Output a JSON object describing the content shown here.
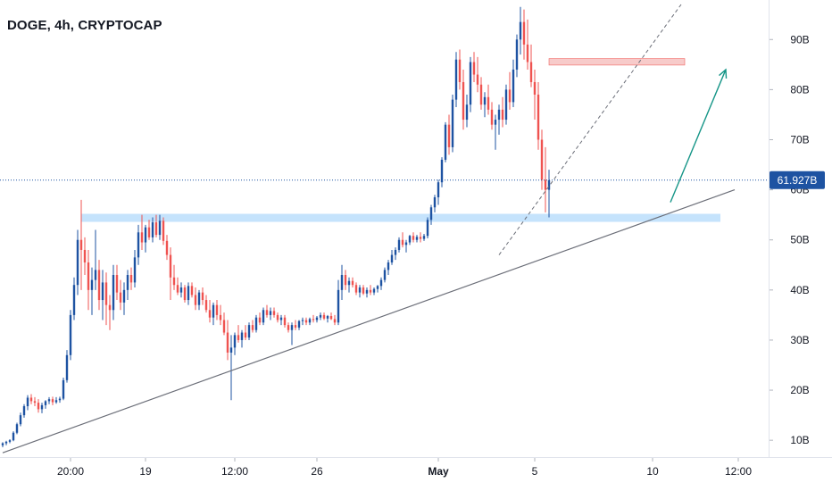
{
  "header": {
    "title": "DOGE, 4h, CRYPTOCAP"
  },
  "colors": {
    "up": "#1e53a2",
    "down": "#ef5350",
    "price_line": "#1e53a2",
    "support_zone": "#bbdefb",
    "resistance_zone": "#f7c6c5",
    "trendline": "#6b6e78",
    "dashed_line": "#6b6e78",
    "arrow": "#159587",
    "axis_text": "#131722"
  },
  "chart_data": {
    "type": "candlestick",
    "symbol": "DOGE",
    "interval": "4h",
    "source": "CRYPTOCAP",
    "y_unit": "B",
    "ylim": [
      7,
      97
    ],
    "y_ticks": [
      {
        "value": 90,
        "label": "90B"
      },
      {
        "value": 80,
        "label": "80B"
      },
      {
        "value": 70,
        "label": "70B"
      },
      {
        "value": 60,
        "label": "60B"
      },
      {
        "value": 50,
        "label": "50B"
      },
      {
        "value": 40,
        "label": "40B"
      },
      {
        "value": 30,
        "label": "30B"
      },
      {
        "value": 20,
        "label": "20B"
      },
      {
        "value": 10,
        "label": "10B"
      }
    ],
    "x_ticks": [
      {
        "label": "20:00",
        "bar": 19
      },
      {
        "label": "19",
        "bar": 40
      },
      {
        "label": "12:00",
        "bar": 65
      },
      {
        "label": "26",
        "bar": 88
      },
      {
        "label": "May",
        "bar": 122,
        "bold": true
      },
      {
        "label": "5",
        "bar": 149
      },
      {
        "label": "10",
        "bar": 182
      },
      {
        "label": "12:00",
        "bar": 206
      }
    ],
    "current_price": 61.927,
    "current_price_label": "61.927B",
    "candles": [
      [
        9.0,
        9.6,
        8.6,
        9.4
      ],
      [
        9.4,
        9.9,
        9.0,
        9.7
      ],
      [
        9.7,
        10.2,
        9.4,
        10.0
      ],
      [
        10.0,
        11.8,
        9.8,
        11.5
      ],
      [
        11.5,
        13.5,
        11.2,
        13.2
      ],
      [
        13.2,
        15.5,
        12.8,
        15.0
      ],
      [
        15.0,
        17.2,
        14.5,
        16.8
      ],
      [
        16.8,
        19.0,
        16.0,
        18.5
      ],
      [
        18.5,
        19.2,
        17.2,
        17.8
      ],
      [
        17.8,
        18.6,
        16.8,
        17.5
      ],
      [
        17.5,
        18.2,
        15.5,
        16.2
      ],
      [
        16.2,
        17.5,
        15.4,
        17.0
      ],
      [
        17.0,
        18.0,
        16.3,
        17.8
      ],
      [
        17.8,
        18.6,
        17.2,
        18.2
      ],
      [
        18.2,
        18.7,
        17.0,
        17.6
      ],
      [
        17.6,
        18.6,
        17.3,
        18.0
      ],
      [
        18.0,
        18.7,
        17.5,
        18.3
      ],
      [
        18.3,
        22.5,
        18.0,
        22.0
      ],
      [
        22.0,
        28.0,
        21.5,
        27.0
      ],
      [
        27.0,
        36.0,
        26.0,
        35.0
      ],
      [
        35.0,
        42.5,
        34.0,
        41.0
      ],
      [
        41.0,
        52.0,
        39.0,
        50.0
      ],
      [
        50.0,
        58.0,
        40.0,
        48.0
      ],
      [
        48.0,
        50.5,
        43.0,
        45.5
      ],
      [
        45.5,
        48.0,
        36.0,
        40.0
      ],
      [
        40.0,
        44.5,
        35.0,
        42.0
      ],
      [
        42.0,
        52.0,
        40.0,
        44.0
      ],
      [
        44.0,
        46.0,
        36.0,
        38.0
      ],
      [
        38.0,
        44.0,
        34.0,
        41.5
      ],
      [
        41.5,
        43.5,
        33.0,
        37.0
      ],
      [
        37.0,
        39.0,
        32.0,
        36.0
      ],
      [
        36.0,
        45.0,
        34.0,
        43.0
      ],
      [
        43.0,
        45.0,
        38.0,
        39.5
      ],
      [
        39.5,
        42.0,
        36.0,
        37.5
      ],
      [
        37.5,
        41.5,
        35.0,
        40.0
      ],
      [
        40.0,
        44.0,
        38.0,
        43.0
      ],
      [
        43.0,
        44.5,
        40.0,
        41.5
      ],
      [
        41.5,
        48.0,
        40.5,
        46.5
      ],
      [
        46.5,
        53.0,
        45.0,
        51.5
      ],
      [
        51.5,
        55.0,
        48.0,
        49.5
      ],
      [
        49.5,
        53.0,
        47.5,
        52.5
      ],
      [
        52.5,
        54.0,
        50.0,
        50.5
      ],
      [
        50.5,
        54.5,
        49.5,
        53.5
      ],
      [
        53.5,
        55.0,
        50.5,
        51.0
      ],
      [
        51.0,
        55.0,
        50.0,
        53.8
      ],
      [
        53.8,
        54.5,
        49.0,
        49.8
      ],
      [
        49.8,
        51.0,
        46.0,
        47.0
      ],
      [
        47.0,
        48.5,
        38.0,
        42.5
      ],
      [
        42.5,
        45.0,
        40.0,
        41.0
      ],
      [
        41.0,
        42.5,
        39.0,
        39.5
      ],
      [
        39.5,
        41.5,
        38.5,
        40.5
      ],
      [
        40.5,
        41.0,
        37.5,
        38.0
      ],
      [
        38.0,
        41.5,
        37.0,
        40.8
      ],
      [
        40.8,
        41.5,
        38.5,
        39.0
      ],
      [
        39.0,
        40.5,
        36.0,
        37.0
      ],
      [
        37.0,
        40.0,
        36.0,
        39.5
      ],
      [
        39.5,
        40.5,
        37.0,
        38.0
      ],
      [
        38.0,
        39.0,
        35.5,
        36.0
      ],
      [
        36.0,
        38.0,
        33.5,
        34.5
      ],
      [
        34.5,
        37.5,
        33.0,
        37.0
      ],
      [
        37.0,
        38.0,
        34.0,
        35.0
      ],
      [
        35.0,
        37.0,
        33.0,
        34.0
      ],
      [
        34.0,
        35.5,
        31.0,
        31.5
      ],
      [
        31.5,
        34.0,
        26.0,
        27.5
      ],
      [
        27.5,
        31.0,
        18.0,
        28.5
      ],
      [
        28.5,
        31.5,
        27.0,
        31.0
      ],
      [
        31.0,
        33.0,
        29.5,
        30.0
      ],
      [
        30.0,
        32.0,
        28.5,
        31.5
      ],
      [
        31.5,
        33.0,
        30.0,
        30.5
      ],
      [
        30.5,
        33.5,
        30.0,
        33.0
      ],
      [
        33.0,
        34.0,
        31.5,
        32.0
      ],
      [
        32.0,
        35.0,
        31.5,
        34.5
      ],
      [
        34.5,
        35.5,
        33.0,
        33.5
      ],
      [
        33.5,
        36.5,
        33.0,
        36.0
      ],
      [
        36.0,
        37.0,
        34.5,
        35.0
      ],
      [
        35.0,
        36.5,
        34.0,
        35.8
      ],
      [
        35.8,
        36.5,
        34.5,
        35.0
      ],
      [
        35.0,
        35.5,
        33.5,
        34.0
      ],
      [
        34.0,
        35.0,
        33.0,
        34.5
      ],
      [
        34.5,
        35.0,
        32.5,
        33.0
      ],
      [
        33.0,
        33.5,
        31.5,
        32.0
      ],
      [
        32.0,
        33.5,
        29.0,
        33.0
      ],
      [
        33.0,
        34.0,
        32.0,
        32.5
      ],
      [
        32.5,
        34.0,
        32.0,
        33.8
      ],
      [
        33.8,
        34.5,
        33.0,
        34.0
      ],
      [
        34.0,
        34.5,
        33.0,
        33.5
      ],
      [
        33.5,
        34.5,
        33.0,
        34.2
      ],
      [
        34.2,
        35.0,
        33.5,
        34.0
      ],
      [
        34.0,
        34.8,
        33.5,
        34.5
      ],
      [
        34.5,
        35.5,
        34.0,
        35.0
      ],
      [
        35.0,
        35.5,
        34.0,
        34.3
      ],
      [
        34.3,
        35.0,
        33.5,
        34.8
      ],
      [
        34.8,
        35.5,
        34.0,
        34.2
      ],
      [
        34.2,
        35.0,
        33.0,
        33.5
      ],
      [
        33.5,
        42.0,
        33.0,
        40.0
      ],
      [
        40.0,
        45.0,
        38.0,
        43.0
      ],
      [
        43.0,
        44.0,
        40.0,
        41.0
      ],
      [
        41.0,
        42.5,
        39.5,
        41.8
      ],
      [
        41.8,
        42.5,
        40.5,
        41.0
      ],
      [
        41.0,
        41.5,
        39.0,
        39.5
      ],
      [
        39.5,
        41.0,
        38.5,
        40.5
      ],
      [
        40.5,
        41.0,
        39.0,
        39.3
      ],
      [
        39.3,
        40.5,
        38.5,
        40.0
      ],
      [
        40.0,
        41.0,
        39.0,
        39.5
      ],
      [
        39.5,
        40.5,
        39.0,
        40.2
      ],
      [
        40.2,
        41.0,
        39.5,
        40.8
      ],
      [
        40.8,
        42.5,
        40.0,
        42.0
      ],
      [
        42.0,
        44.5,
        41.5,
        44.0
      ],
      [
        44.0,
        46.0,
        43.0,
        45.5
      ],
      [
        45.5,
        48.0,
        45.0,
        47.0
      ],
      [
        47.0,
        48.5,
        46.0,
        48.0
      ],
      [
        48.0,
        50.5,
        47.5,
        50.0
      ],
      [
        50.0,
        51.5,
        48.5,
        49.0
      ],
      [
        49.0,
        50.0,
        47.5,
        49.5
      ],
      [
        49.5,
        51.0,
        49.0,
        50.8
      ],
      [
        50.8,
        51.5,
        49.5,
        50.0
      ],
      [
        50.0,
        51.0,
        49.5,
        50.6
      ],
      [
        50.6,
        51.5,
        49.5,
        50.2
      ],
      [
        50.2,
        51.2,
        49.8,
        50.8
      ],
      [
        50.8,
        54.5,
        50.3,
        54.0
      ],
      [
        54.0,
        57.0,
        53.0,
        56.5
      ],
      [
        56.5,
        59.0,
        55.5,
        58.5
      ],
      [
        58.5,
        62.0,
        57.0,
        61.5
      ],
      [
        61.5,
        66.5,
        60.5,
        66.0
      ],
      [
        66.0,
        73.5,
        65.5,
        73.0
      ],
      [
        73.0,
        75.0,
        67.0,
        68.5
      ],
      [
        68.5,
        79.0,
        67.5,
        78.0
      ],
      [
        78.0,
        87.5,
        76.5,
        86.0
      ],
      [
        86.0,
        88.0,
        80.0,
        81.5
      ],
      [
        81.5,
        84.0,
        72.0,
        74.0
      ],
      [
        74.0,
        79.0,
        72.5,
        77.0
      ],
      [
        77.0,
        86.5,
        75.5,
        85.5
      ],
      [
        85.5,
        87.5,
        81.5,
        83.0
      ],
      [
        83.0,
        86.5,
        79.5,
        81.0
      ],
      [
        81.0,
        82.5,
        76.0,
        77.0
      ],
      [
        77.0,
        79.5,
        74.5,
        78.5
      ],
      [
        78.5,
        81.0,
        75.0,
        76.0
      ],
      [
        76.0,
        77.5,
        72.0,
        73.0
      ],
      [
        73.0,
        75.0,
        68.0,
        74.0
      ],
      [
        74.0,
        77.0,
        71.0,
        76.0
      ],
      [
        76.0,
        78.5,
        72.5,
        74.0
      ],
      [
        74.0,
        81.0,
        73.0,
        80.0
      ],
      [
        80.0,
        83.5,
        76.0,
        77.5
      ],
      [
        77.5,
        86.0,
        76.5,
        84.0
      ],
      [
        84.0,
        91.0,
        82.5,
        90.0
      ],
      [
        90.0,
        96.5,
        87.0,
        93.5
      ],
      [
        93.5,
        96.0,
        86.0,
        89.0
      ],
      [
        89.0,
        94.0,
        84.0,
        85.5
      ],
      [
        85.5,
        89.0,
        80.5,
        81.5
      ],
      [
        81.5,
        84.0,
        74.0,
        79.0
      ],
      [
        79.0,
        81.5,
        68.0,
        70.0
      ],
      [
        70.0,
        72.0,
        60.0,
        62.0
      ],
      [
        62.0,
        68.5,
        55.5,
        60.0
      ],
      [
        60.0,
        64.0,
        54.5,
        61.9
      ]
    ]
  }
}
